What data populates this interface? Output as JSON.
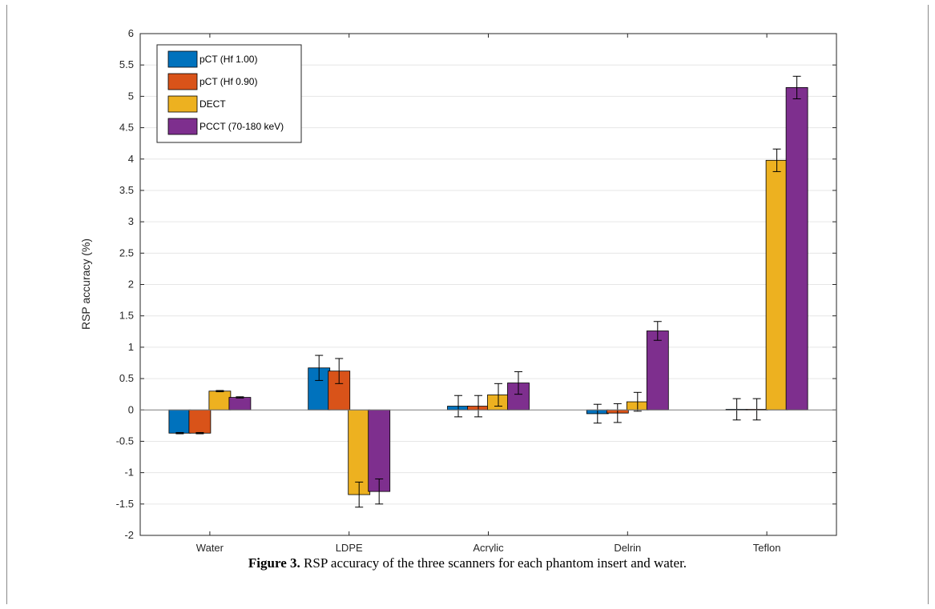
{
  "caption": {
    "label": "Figure 3.",
    "text": " RSP accuracy of the three scanners for each phantom insert and water."
  },
  "chart_data": {
    "type": "bar",
    "title": "",
    "xlabel": "",
    "ylabel": "RSP accuracy (%)",
    "ylim": [
      -2,
      6
    ],
    "yticks": [
      -2,
      -1.5,
      -1,
      -0.5,
      0,
      0.5,
      1,
      1.5,
      2,
      2.5,
      3,
      3.5,
      4,
      4.5,
      5,
      5.5,
      6
    ],
    "grid": "horizontal",
    "legend_position": "top-left",
    "categories": [
      "Water",
      "LDPE",
      "Acrylic",
      "Delrin",
      "Teflon"
    ],
    "series": [
      {
        "name": "pCT (Hf 1.00)",
        "color": "#0072BD",
        "values": [
          -0.37,
          0.67,
          0.06,
          -0.06,
          0.01
        ],
        "errors": [
          0.01,
          0.2,
          0.17,
          0.15,
          0.17
        ]
      },
      {
        "name": "pCT (Hf 0.90)",
        "color": "#D95319",
        "values": [
          -0.37,
          0.62,
          0.06,
          -0.05,
          0.01
        ],
        "errors": [
          0.01,
          0.2,
          0.17,
          0.15,
          0.17
        ]
      },
      {
        "name": "DECT",
        "color": "#EDB120",
        "values": [
          0.3,
          -1.35,
          0.24,
          0.13,
          3.98
        ],
        "errors": [
          0.01,
          0.2,
          0.18,
          0.15,
          0.18
        ]
      },
      {
        "name": "PCCT (70-180 keV)",
        "color": "#7E2F8E",
        "values": [
          0.2,
          -1.3,
          0.43,
          1.26,
          5.14
        ],
        "errors": [
          0.01,
          0.2,
          0.18,
          0.15,
          0.18
        ]
      }
    ]
  }
}
